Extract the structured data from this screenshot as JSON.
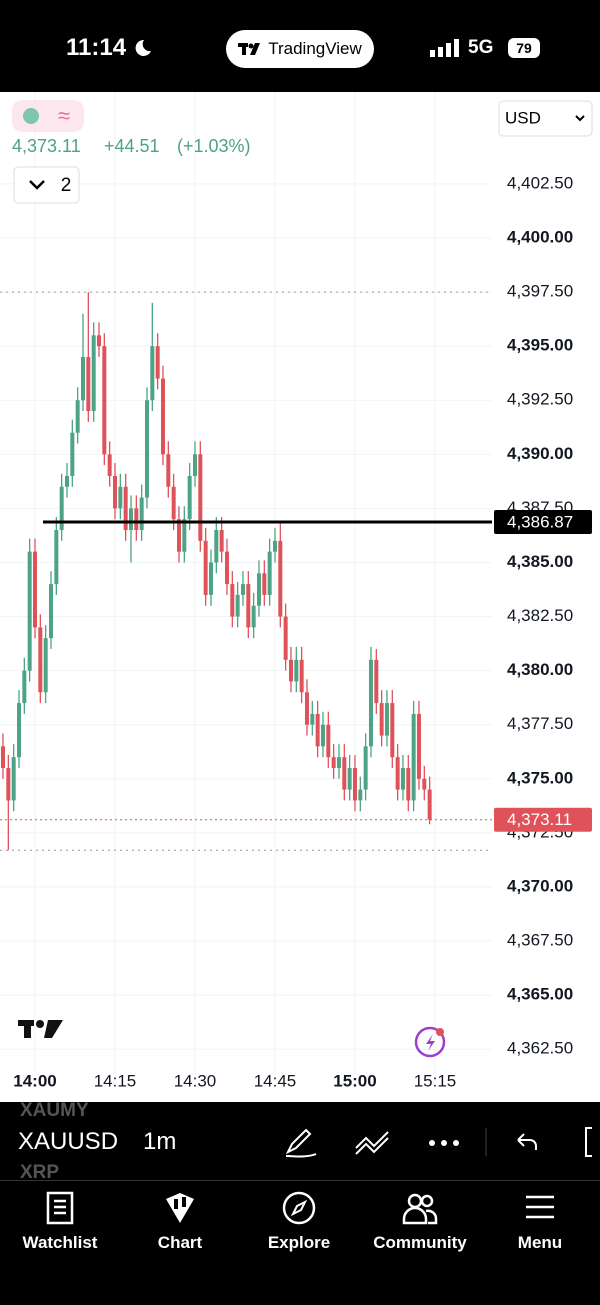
{
  "status_bar": {
    "time": "11:14",
    "app": "TradingView",
    "network": "5G",
    "battery": "79"
  },
  "header": {
    "price": "4,373.11",
    "change": "+44.51",
    "change_percent": "(+1.03%)",
    "indicator_count": "2",
    "currency": "USD"
  },
  "chart_data": {
    "type": "candlestick",
    "categories": [
      null,
      null,
      null,
      null,
      null,
      null,
      "14:00",
      null,
      null,
      null,
      null,
      null,
      null,
      null,
      null,
      null,
      null,
      null,
      null,
      null,
      null,
      "14:15",
      null,
      null,
      null,
      null,
      null,
      null,
      null,
      null,
      null,
      null,
      null,
      null,
      null,
      null,
      "14:30",
      null,
      null,
      null,
      null,
      null,
      null,
      null,
      null,
      null,
      null,
      null,
      null,
      null,
      null,
      "14:45",
      null,
      null,
      null,
      null,
      null,
      null,
      null,
      null,
      null,
      null,
      null,
      null,
      null,
      null,
      "15:00",
      null,
      null,
      null,
      null,
      null,
      null,
      null,
      null,
      null,
      null,
      null,
      null,
      null,
      null,
      "15:15"
    ],
    "open": [
      4376.5,
      4375.5,
      4374.0,
      4376.0,
      4378.5,
      4380.0,
      4385.5,
      4382.0,
      4379.0,
      4381.5,
      4384.0,
      4386.5,
      4388.5,
      4389.0,
      4391.0,
      4392.5,
      4394.5,
      4392.0,
      4395.5,
      4395.0,
      4390.0,
      4389.0,
      4387.5,
      4388.5,
      4386.5,
      4387.5,
      4386.5,
      4388.0,
      4392.5,
      4395.0,
      4393.5,
      4390.0,
      4388.5,
      4387.0,
      4385.5,
      4387.0,
      4389.0,
      4390.0,
      4386.0,
      4383.5,
      4385.0,
      4386.5,
      4385.5,
      4384.0,
      4382.5,
      4383.5,
      4384.0,
      4382.0,
      4383.0,
      4384.5,
      4383.5,
      4385.5,
      4386.0,
      4382.5,
      4380.5,
      4379.5,
      4380.5,
      4379.0,
      4377.5,
      4378.0,
      4376.5,
      4377.5,
      4376.0,
      4375.5,
      4376.0,
      4374.5,
      4375.5,
      4374.0,
      4374.5,
      4376.5,
      4380.5,
      4378.5,
      4377.0,
      4378.5,
      4376.0,
      4374.5,
      4375.5,
      4374.0,
      4378.0,
      4375.0,
      4374.5,
      null
    ],
    "high": [
      4377.1,
      4376.1,
      4376.6,
      4379.1,
      4380.6,
      4386.1,
      4386.1,
      4382.6,
      4382.1,
      4384.6,
      4387.1,
      4389.1,
      4389.6,
      4391.6,
      4393.1,
      4396.5,
      4397.5,
      4396.1,
      4396.1,
      4395.6,
      4390.6,
      4389.6,
      4389.1,
      4389.1,
      4388.1,
      4388.1,
      4388.6,
      4393.1,
      4397.0,
      4395.6,
      4394.1,
      4390.6,
      4389.1,
      4387.6,
      4387.6,
      4389.6,
      4390.6,
      4390.6,
      4386.6,
      4385.6,
      4387.1,
      4387.1,
      4386.1,
      4384.6,
      4384.1,
      4384.6,
      4384.6,
      4383.6,
      4385.1,
      4385.1,
      4386.1,
      4386.6,
      4386.9,
      4383.1,
      4381.1,
      4381.1,
      4381.1,
      4379.6,
      4378.6,
      4378.6,
      4378.1,
      4378.1,
      4376.6,
      4376.6,
      4376.6,
      4376.1,
      4376.1,
      4375.1,
      4377.1,
      4381.1,
      4381.0,
      4379.1,
      4379.1,
      4379.1,
      4376.6,
      4376.1,
      4376.1,
      4378.6,
      4378.6,
      4375.6,
      4375.1,
      null
    ],
    "low": [
      4375.0,
      4371.7,
      4373.5,
      4375.5,
      4378.0,
      4379.5,
      4381.5,
      4378.5,
      4378.5,
      4381.0,
      4383.5,
      4386.0,
      4388.0,
      4388.5,
      4390.5,
      4392.0,
      4391.5,
      4391.5,
      4394.5,
      4389.5,
      4388.5,
      4387.0,
      4387.0,
      4386.0,
      4385.0,
      4386.0,
      4386.0,
      4387.5,
      4392.0,
      4393.0,
      4389.5,
      4388.0,
      4386.5,
      4385.0,
      4385.0,
      4386.5,
      4388.5,
      4385.5,
      4383.0,
      4383.0,
      4384.5,
      4385.0,
      4383.5,
      4382.0,
      4382.0,
      4383.0,
      4381.5,
      4381.5,
      4382.5,
      4383.0,
      4383.0,
      4385.0,
      4382.0,
      4380.0,
      4379.0,
      4379.0,
      4378.5,
      4377.0,
      4377.0,
      4376.0,
      4376.0,
      4375.5,
      4375.0,
      4375.0,
      4374.0,
      4374.0,
      4373.5,
      4373.5,
      4374.0,
      4376.0,
      4378.0,
      4376.5,
      4376.5,
      4375.5,
      4374.0,
      4374.0,
      4373.5,
      4373.5,
      4374.5,
      4374.0,
      4372.9,
      null
    ],
    "close": [
      4375.5,
      4374.0,
      4376.0,
      4378.5,
      4380.0,
      4385.5,
      4382.0,
      4379.0,
      4381.5,
      4384.0,
      4386.5,
      4388.5,
      4389.0,
      4391.0,
      4392.5,
      4394.5,
      4392.0,
      4395.5,
      4395.0,
      4390.0,
      4389.0,
      4387.5,
      4388.5,
      4386.5,
      4387.5,
      4386.5,
      4388.0,
      4392.5,
      4395.0,
      4393.5,
      4390.0,
      4388.5,
      4387.0,
      4385.5,
      4387.0,
      4389.0,
      4390.0,
      4386.0,
      4383.5,
      4385.0,
      4386.5,
      4385.5,
      4384.0,
      4382.5,
      4383.5,
      4384.0,
      4382.0,
      4383.0,
      4384.5,
      4383.5,
      4385.5,
      4386.0,
      4382.5,
      4380.5,
      4379.5,
      4380.5,
      4379.0,
      4377.5,
      4378.0,
      4376.5,
      4377.5,
      4376.0,
      4375.5,
      4376.0,
      4374.5,
      4375.5,
      4374.0,
      4374.5,
      4376.5,
      4380.5,
      4378.5,
      4377.0,
      4378.5,
      4376.0,
      4374.5,
      4375.5,
      4374.0,
      4378.0,
      4375.0,
      4374.5,
      4373.11,
      null
    ],
    "up_color": "#4ca386",
    "down_color": "#e0525a",
    "ylim": [
      4361.77,
      4406.61
    ],
    "yticks": [
      {
        "value": 4362.5,
        "label": "4,362.50"
      },
      {
        "value": 4365,
        "label": "4,365.00"
      },
      {
        "value": 4367.5,
        "label": "4,367.50"
      },
      {
        "value": 4370,
        "label": "4,370.00"
      },
      {
        "value": 4372.5,
        "label": "4,372.50"
      },
      {
        "value": 4375,
        "label": "4,375.00"
      },
      {
        "value": 4377.5,
        "label": "4,377.50"
      },
      {
        "value": 4380,
        "label": "4,380.00"
      },
      {
        "value": 4382.5,
        "label": "4,382.50"
      },
      {
        "value": 4385,
        "label": "4,385.00"
      },
      {
        "value": 4387.5,
        "label": "4,387.50"
      },
      {
        "value": 4390,
        "label": "4,390.00"
      },
      {
        "value": 4392.5,
        "label": "4,392.50"
      },
      {
        "value": 4395,
        "label": "4,395.00"
      },
      {
        "value": 4397.5,
        "label": "4,397.50"
      },
      {
        "value": 4400,
        "label": "4,400.00"
      },
      {
        "value": 4402.5,
        "label": "4,402.50"
      }
    ],
    "grid": true,
    "horizontal_line": {
      "value": 4386.87,
      "label": "4,386.87"
    },
    "last_price": {
      "value": 4373.11,
      "label": "4,373.11"
    },
    "high_line": 4397.5,
    "low_line": 4371.7
  },
  "toolbar": {
    "symbol": "XAUUSD",
    "interval": "1m",
    "symbol_above": "XAUMY",
    "symbol_below": "XRP"
  },
  "nav": [
    "Watchlist",
    "Chart",
    "Explore",
    "Community",
    "Menu"
  ]
}
